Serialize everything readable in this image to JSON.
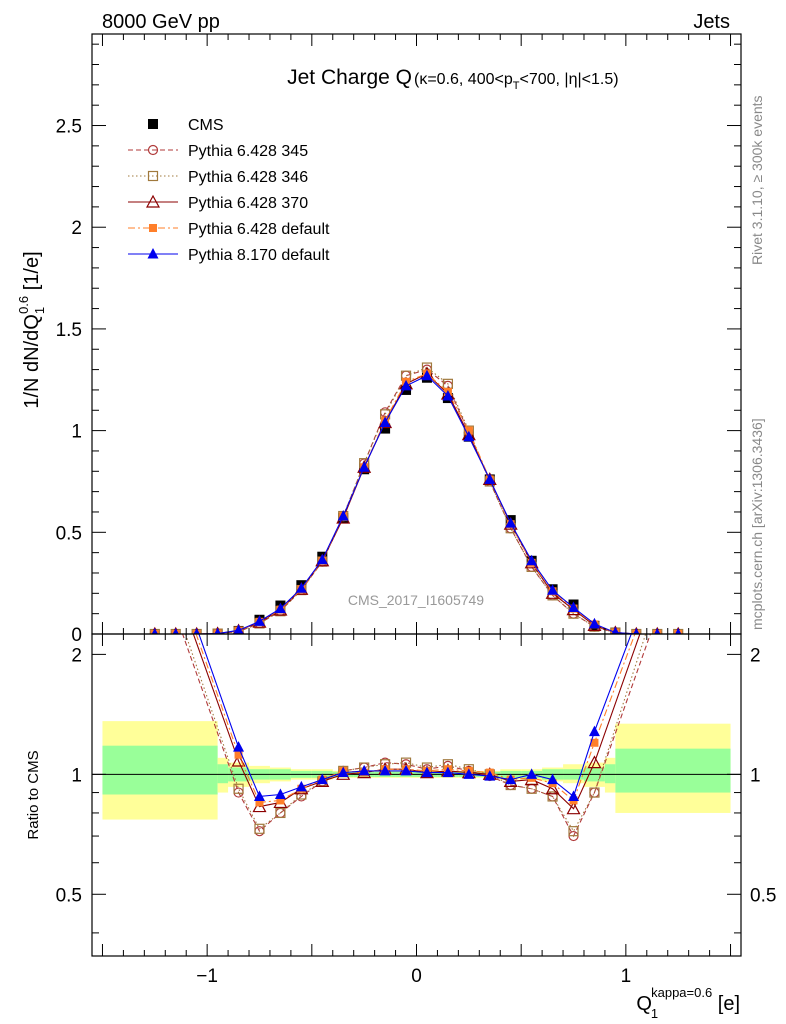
{
  "header": {
    "left": "8000 GeV pp",
    "right": "Jets"
  },
  "side_labels": {
    "rivet": "Rivet 3.1.10, ≥ 300k events",
    "mcplots": "mcplots.cern.ch [arXiv:1306.3436]"
  },
  "chart_data": {
    "type": "scatter",
    "title_main": "Jet Charge Q",
    "title_detail_1": "(κ=0.6, 400<p",
    "title_detail_sub": "T",
    "title_detail_2": "<700, |η|<1.5)",
    "watermark": "CMS_2017_I1605749",
    "ylabel_main": "1/N dN/dQ",
    "ylabel_sub": "1",
    "ylabel_sup": "0.6",
    "ylabel_unit": " [1/e]",
    "xlabel_main": "Q",
    "xlabel_sub": "1",
    "xlabel_sup": "kappa=0.6",
    "xlabel_unit": " [e]",
    "ylabel_ratio": "Ratio to CMS",
    "xlim": [
      -1.55,
      1.55
    ],
    "ylim": [
      0,
      2.95
    ],
    "ratio_ylim": [
      0.35,
      2.25
    ],
    "x_ticks": [
      "−1",
      "0",
      "1"
    ],
    "x_tick_values": [
      -1,
      0,
      1
    ],
    "y_ticks": [
      "0",
      "0.5",
      "1",
      "1.5",
      "2",
      "2.5"
    ],
    "y_tick_values": [
      0,
      0.5,
      1,
      1.5,
      2,
      2.5
    ],
    "ratio_y_ticks": [
      "0.5",
      "1",
      "2"
    ],
    "ratio_y_tick_values": [
      0.5,
      1,
      2
    ],
    "legend": "top-left",
    "x": [
      -1.25,
      -1.15,
      -1.05,
      -0.95,
      -0.85,
      -0.75,
      -0.65,
      -0.55,
      -0.45,
      -0.35,
      -0.25,
      -0.15,
      -0.05,
      0.05,
      0.15,
      0.25,
      0.35,
      0.45,
      0.55,
      0.65,
      0.75,
      0.85,
      0.95,
      1.05,
      1.15,
      1.25
    ],
    "series": [
      {
        "name": "CMS",
        "color": "#000000",
        "marker": "square-filled",
        "line": "none",
        "values": [
          0.0,
          0.0,
          0.0,
          0.002,
          0.015,
          0.07,
          0.14,
          0.24,
          0.38,
          0.57,
          0.81,
          1.01,
          1.2,
          1.26,
          1.16,
          0.97,
          0.76,
          0.56,
          0.36,
          0.22,
          0.145,
          0.04,
          0.007,
          0.0,
          0.0,
          0.0
        ]
      },
      {
        "name": "Pythia 6.428 345",
        "color": "#b03a3a",
        "marker": "circle-open",
        "line": "dashed",
        "values": [
          0.0,
          0.0,
          0.0,
          0.002,
          0.012,
          0.052,
          0.113,
          0.217,
          0.356,
          0.578,
          0.838,
          1.09,
          1.27,
          1.3,
          1.22,
          0.99,
          0.75,
          0.52,
          0.33,
          0.19,
          0.1,
          0.036,
          0.006,
          0.0,
          0.0,
          0.0
        ]
      },
      {
        "name": "Pythia 6.428 346",
        "color": "#a0793d",
        "marker": "square-open",
        "line": "dotted",
        "values": [
          0.0,
          0.0,
          0.0,
          0.002,
          0.012,
          0.052,
          0.112,
          0.216,
          0.356,
          0.58,
          0.84,
          1.08,
          1.27,
          1.31,
          1.23,
          1.0,
          0.75,
          0.52,
          0.33,
          0.19,
          0.1,
          0.036,
          0.006,
          0.0,
          0.0,
          0.0
        ]
      },
      {
        "name": "Pythia 6.428 370",
        "color": "#8b0000",
        "marker": "triangle-open",
        "line": "solid",
        "values": [
          0.0,
          0.0,
          0.0,
          0.002,
          0.016,
          0.058,
          0.118,
          0.22,
          0.36,
          0.57,
          0.82,
          1.04,
          1.23,
          1.28,
          1.18,
          0.98,
          0.76,
          0.54,
          0.35,
          0.2,
          0.12,
          0.042,
          0.007,
          0.0,
          0.0,
          0.0
        ]
      },
      {
        "name": "Pythia 6.428 default",
        "color": "#ff7f2a",
        "marker": "square-filled-small",
        "line": "dashdot",
        "values": [
          0.0,
          0.0,
          0.0,
          0.002,
          0.017,
          0.06,
          0.12,
          0.22,
          0.36,
          0.58,
          0.82,
          1.05,
          1.24,
          1.28,
          1.19,
          1.0,
          0.76,
          0.54,
          0.35,
          0.21,
          0.125,
          0.047,
          0.007,
          0.0,
          0.0,
          0.0
        ]
      },
      {
        "name": "Pythia 8.170 default",
        "color": "#0000ee",
        "marker": "triangle-filled",
        "line": "solid",
        "values": [
          0.0,
          0.0,
          0.0,
          0.002,
          0.018,
          0.062,
          0.125,
          0.225,
          0.365,
          0.58,
          0.82,
          1.04,
          1.22,
          1.27,
          1.17,
          0.97,
          0.76,
          0.545,
          0.36,
          0.215,
          0.13,
          0.05,
          0.007,
          0.0,
          0.0,
          0.0
        ]
      }
    ],
    "ratio_band_edges": [
      -1.5,
      -0.95,
      -0.9,
      -0.8,
      -0.7,
      -0.6,
      -0.5,
      -0.4,
      -0.3,
      -0.2,
      -0.1,
      0.0,
      0.1,
      0.2,
      0.3,
      0.4,
      0.5,
      0.6,
      0.7,
      0.8,
      0.9,
      0.95,
      1.5
    ],
    "ratio_band_inner": [
      [
        0.89,
        1.18
      ],
      [
        0.95,
        1.06
      ],
      [
        0.96,
        1.04
      ],
      [
        0.97,
        1.03
      ],
      [
        0.97,
        1.03
      ],
      [
        0.98,
        1.02
      ],
      [
        0.98,
        1.02
      ],
      [
        0.985,
        1.015
      ],
      [
        0.985,
        1.015
      ],
      [
        0.985,
        1.015
      ],
      [
        0.985,
        1.015
      ],
      [
        0.985,
        1.015
      ],
      [
        0.985,
        1.015
      ],
      [
        0.985,
        1.015
      ],
      [
        0.985,
        1.015
      ],
      [
        0.98,
        1.02
      ],
      [
        0.98,
        1.02
      ],
      [
        0.97,
        1.03
      ],
      [
        0.97,
        1.03
      ],
      [
        0.96,
        1.04
      ],
      [
        0.95,
        1.06
      ],
      [
        0.9,
        1.16
      ]
    ],
    "ratio_band_outer": [
      [
        0.77,
        1.36
      ],
      [
        0.9,
        1.1
      ],
      [
        0.93,
        1.07
      ],
      [
        0.95,
        1.05
      ],
      [
        0.96,
        1.04
      ],
      [
        0.97,
        1.03
      ],
      [
        0.97,
        1.03
      ],
      [
        0.98,
        1.02
      ],
      [
        0.98,
        1.02
      ],
      [
        0.98,
        1.02
      ],
      [
        0.98,
        1.02
      ],
      [
        0.98,
        1.02
      ],
      [
        0.98,
        1.02
      ],
      [
        0.98,
        1.02
      ],
      [
        0.98,
        1.02
      ],
      [
        0.97,
        1.03
      ],
      [
        0.97,
        1.03
      ],
      [
        0.96,
        1.04
      ],
      [
        0.95,
        1.06
      ],
      [
        0.93,
        1.07
      ],
      [
        0.9,
        1.1
      ],
      [
        0.8,
        1.34
      ]
    ],
    "ratio_x": [
      -1.22,
      -0.85,
      -0.75,
      -0.65,
      -0.55,
      -0.45,
      -0.35,
      -0.25,
      -0.15,
      -0.05,
      0.05,
      0.15,
      0.25,
      0.35,
      0.45,
      0.55,
      0.65,
      0.75,
      0.85,
      1.22
    ],
    "ratio_series": [
      {
        "name": "Pythia 6.428 345",
        "values": [
          3.2,
          0.9,
          0.72,
          0.8,
          0.88,
          0.96,
          1.02,
          1.04,
          1.07,
          1.06,
          1.03,
          1.05,
          1.02,
          0.99,
          0.94,
          0.92,
          0.88,
          0.7,
          0.9,
          3.2
        ]
      },
      {
        "name": "Pythia 6.428 346",
        "values": [
          3.4,
          0.92,
          0.73,
          0.8,
          0.89,
          0.96,
          1.02,
          1.04,
          1.06,
          1.07,
          1.04,
          1.06,
          1.03,
          1.0,
          0.94,
          0.92,
          0.88,
          0.72,
          0.9,
          3.6
        ]
      },
      {
        "name": "Pythia 6.428 370",
        "values": [
          3.8,
          1.08,
          0.83,
          0.85,
          0.92,
          0.96,
          1.0,
          1.01,
          1.03,
          1.03,
          1.01,
          1.02,
          1.01,
          1.0,
          0.96,
          0.97,
          0.92,
          0.82,
          1.07,
          3.8
        ]
      },
      {
        "name": "Pythia 6.428 default",
        "values": [
          4.0,
          1.12,
          0.85,
          0.86,
          0.92,
          0.97,
          1.02,
          1.01,
          1.03,
          1.03,
          1.02,
          1.03,
          1.02,
          1.01,
          0.97,
          0.98,
          0.95,
          0.86,
          1.2,
          4.0
        ]
      },
      {
        "name": "Pythia 8.170 default",
        "values": [
          4.2,
          1.17,
          0.88,
          0.89,
          0.93,
          0.97,
          1.01,
          1.02,
          1.02,
          1.02,
          1.01,
          1.01,
          1.0,
          0.99,
          0.97,
          1.0,
          0.97,
          0.88,
          1.28,
          4.2
        ]
      }
    ],
    "band_colors": {
      "inner": "#99ff99",
      "outer": "#ffff99"
    }
  }
}
